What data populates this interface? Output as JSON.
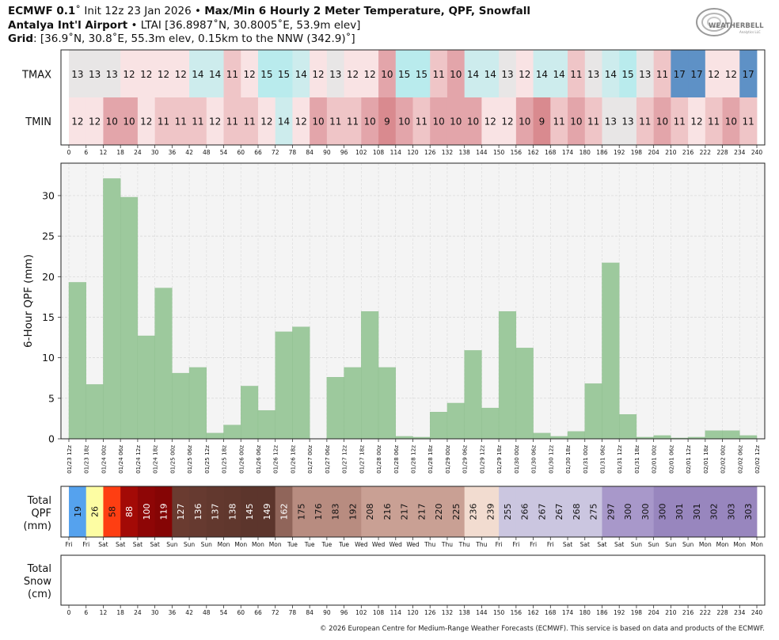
{
  "header": {
    "line1_model": "ECMWF 0.1",
    "line1_deg": "˚",
    "line1_init": " Init 12z 23 Jan 2026 • ",
    "line1_title": "Max/Min 6 Hourly 2 Meter Temperature,  QPF,  Snowfall",
    "line2_station": "Antalya Int'l Airport",
    "line2_rest": " • LTAI [36.8987˚N, 30.8005˚E, 53.9m elev]",
    "line3_label": "Grid",
    "line3_rest": ": [36.9˚N, 30.8˚E, 55.3m elev, 0.15km to the NNW (342.9)˚]"
  },
  "logo": {
    "text": "WEATHERBELL",
    "subtext": "Analytics LLC"
  },
  "footer": "© 2026 European Centre for Medium-Range Weather Forecasts (ECMWF). This service is based on data and products of the ECMWF.",
  "chart_data": [
    {
      "type": "table",
      "name": "temperature",
      "row_labels": [
        "TMAX",
        "TMIN"
      ],
      "tmax": [
        13,
        13,
        13,
        12,
        12,
        12,
        12,
        14,
        14,
        11,
        12,
        15,
        15,
        14,
        12,
        13,
        12,
        12,
        10,
        15,
        15,
        11,
        10,
        14,
        14,
        13,
        12,
        14,
        14,
        11,
        13,
        14,
        15,
        13,
        11,
        17,
        17,
        12,
        12,
        17
      ],
      "tmin": [
        12,
        12,
        10,
        10,
        12,
        11,
        11,
        11,
        12,
        11,
        11,
        12,
        14,
        12,
        10,
        11,
        11,
        10,
        9,
        10,
        11,
        10,
        10,
        10,
        12,
        12,
        10,
        9,
        11,
        10,
        11,
        13,
        13,
        11,
        10,
        11,
        12,
        11,
        10,
        11
      ],
      "x_ticks": [
        0,
        6,
        12,
        18,
        24,
        30,
        36,
        42,
        48,
        54,
        60,
        66,
        72,
        78,
        84,
        90,
        96,
        102,
        108,
        114,
        120,
        126,
        132,
        138,
        144,
        150,
        156,
        162,
        168,
        174,
        180,
        186,
        192,
        198,
        204,
        210,
        216,
        222,
        228,
        234,
        240
      ]
    },
    {
      "type": "bar",
      "name": "qpf",
      "ylabel": "6-Hour QPF (mm)",
      "ylim": [
        0,
        34
      ],
      "yticks": [
        0,
        5,
        10,
        15,
        20,
        25,
        30
      ],
      "values": [
        19.3,
        6.7,
        32.1,
        29.8,
        12.7,
        18.6,
        8.1,
        8.8,
        0.7,
        1.7,
        6.5,
        3.5,
        13.2,
        13.8,
        0.0,
        7.6,
        8.8,
        15.7,
        8.8,
        0.3,
        0.2,
        3.3,
        4.4,
        10.9,
        3.8,
        15.7,
        11.2,
        0.7,
        0.3,
        0.9,
        6.8,
        21.7,
        3.0,
        0.2,
        0.4,
        0.1,
        0.2,
        1.0,
        1.0,
        0.4
      ],
      "color": "#9dc99d",
      "x_ticks": [
        "01/23 12z",
        "01/23 18z",
        "01/24 00z",
        "01/24 06z",
        "01/24 12z",
        "01/24 18z",
        "01/25 00z",
        "01/25 06z",
        "01/25 12z",
        "01/25 18z",
        "01/26 00z",
        "01/26 06z",
        "01/26 12z",
        "01/26 18z",
        "01/27 00z",
        "01/27 06z",
        "01/27 12z",
        "01/27 18z",
        "01/28 00z",
        "01/28 06z",
        "01/28 12z",
        "01/28 18z",
        "01/29 00z",
        "01/29 06z",
        "01/29 12z",
        "01/29 18z",
        "01/30 00z",
        "01/30 06z",
        "01/30 12z",
        "01/30 18z",
        "01/31 00z",
        "01/31 06z",
        "01/31 12z",
        "01/31 18z",
        "02/01 00z",
        "02/01 06z",
        "02/01 12z",
        "02/01 18z",
        "02/02 00z",
        "02/02 06z",
        "02/02 12z"
      ]
    },
    {
      "type": "table",
      "name": "total_qpf",
      "row_label": [
        "Total",
        "QPF",
        "(mm)"
      ],
      "values": [
        19,
        26,
        58,
        88,
        100,
        119,
        127,
        136,
        137,
        138,
        145,
        149,
        162,
        175,
        176,
        183,
        192,
        208,
        216,
        217,
        217,
        220,
        225,
        236,
        239,
        255,
        266,
        267,
        267,
        268,
        275,
        297,
        300,
        300,
        300,
        301,
        301,
        302,
        303,
        303
      ],
      "colors": [
        "#55a2ee",
        "#fdfda3",
        "#fe3e12",
        "#a30a06",
        "#8e0606",
        "#850505",
        "#6a3b30",
        "#663a30",
        "#62382e",
        "#60372d",
        "#5c352c",
        "#5c352c",
        "#90655a",
        "#b88c80",
        "#b88c80",
        "#b88c80",
        "#b88c80",
        "#c9a094",
        "#c9a094",
        "#c9a094",
        "#c9a094",
        "#c9a094",
        "#c9a094",
        "#f2dcd0",
        "#f2dcd0",
        "#cbc6e0",
        "#cbc6e0",
        "#cbc6e0",
        "#cbc6e0",
        "#cbc6e0",
        "#cbc6e0",
        "#a898ca",
        "#a898ca",
        "#a898ca",
        "#9886be",
        "#9886be",
        "#9886be",
        "#9886be",
        "#9886be",
        "#9886be"
      ],
      "day_ticks": [
        "Fri",
        "Fri",
        "Sat",
        "Sat",
        "Sat",
        "Sat",
        "Sun",
        "Sun",
        "Sun",
        "Mon",
        "Mon",
        "Mon",
        "Mon",
        "Tue",
        "Tue",
        "Tue",
        "Tue",
        "Wed",
        "Wed",
        "Wed",
        "Wed",
        "Thu",
        "Thu",
        "Thu",
        "Thu",
        "Fri",
        "Fri",
        "Fri",
        "Fri",
        "Sat",
        "Sat",
        "Sat",
        "Sat",
        "Sun",
        "Sun",
        "Sun",
        "Sun",
        "Mon",
        "Mon",
        "Mon",
        "Mon"
      ]
    },
    {
      "type": "table",
      "name": "total_snow",
      "row_label": [
        "Total",
        "Snow",
        "(cm)"
      ],
      "values": [],
      "x_ticks": [
        0,
        6,
        12,
        18,
        24,
        30,
        36,
        42,
        48,
        54,
        60,
        66,
        72,
        78,
        84,
        90,
        96,
        102,
        108,
        114,
        120,
        126,
        132,
        138,
        144,
        150,
        156,
        162,
        168,
        174,
        180,
        186,
        192,
        198,
        204,
        210,
        216,
        222,
        228,
        234,
        240
      ]
    }
  ]
}
